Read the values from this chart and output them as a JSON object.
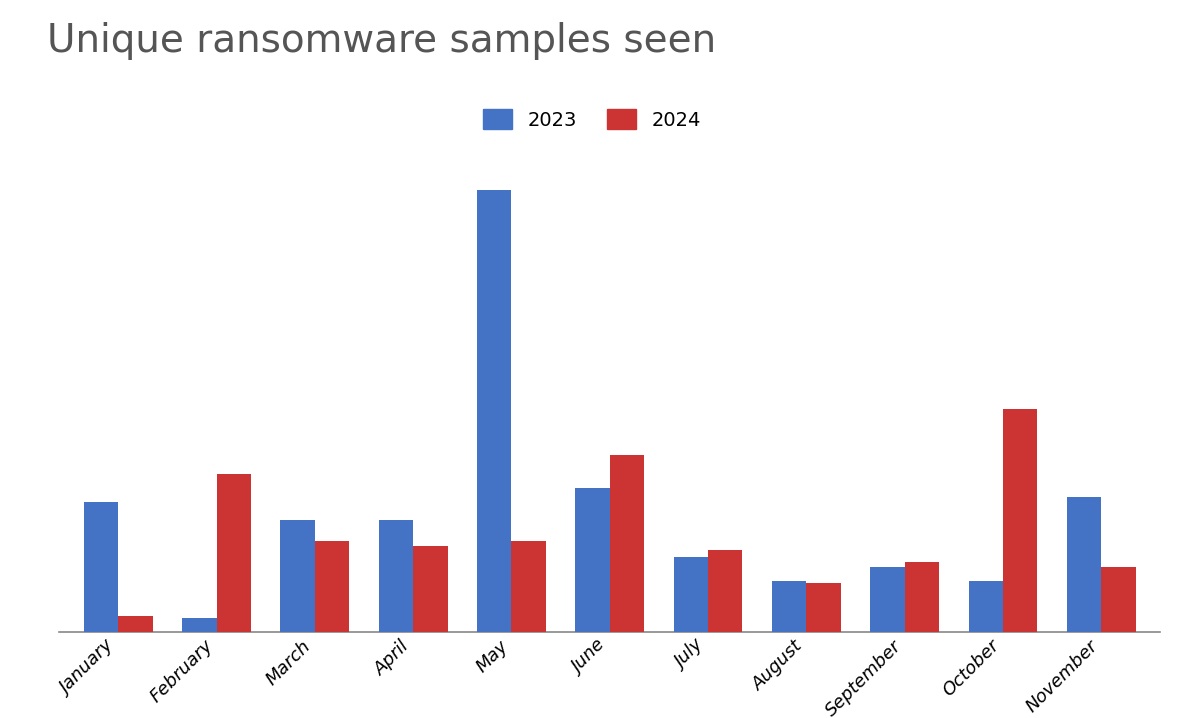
{
  "title": "Unique ransomware samples seen",
  "months": [
    "January",
    "February",
    "March",
    "April",
    "May",
    "June",
    "July",
    "August",
    "September",
    "October",
    "November"
  ],
  "values_2023": [
    280,
    30,
    240,
    240,
    950,
    310,
    160,
    110,
    140,
    110,
    290
  ],
  "values_2024": [
    35,
    340,
    195,
    185,
    195,
    380,
    175,
    105,
    150,
    480,
    140
  ],
  "color_2023": "#4472C4",
  "color_2024": "#CC3333",
  "legend_labels": [
    "2023",
    "2024"
  ],
  "background_color": "#ffffff",
  "grid_color": "#cccccc",
  "title_color": "#555555",
  "title_fontsize": 28,
  "tick_label_fontsize": 13,
  "legend_fontsize": 14,
  "bar_width": 0.35,
  "ylim": [
    0,
    1050
  ]
}
